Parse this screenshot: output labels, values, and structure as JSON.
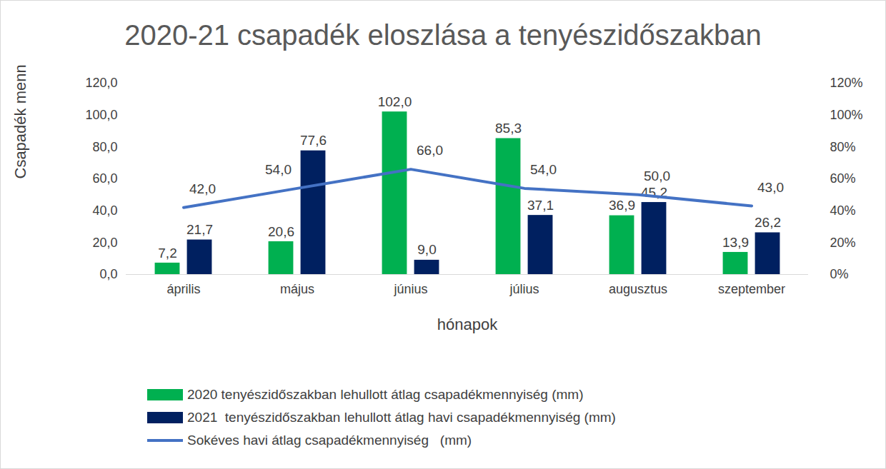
{
  "chart_data": {
    "type": "bar",
    "title": "2020-21 csapadék eloszlása a tenyészidőszakban",
    "x_label": "hónapok",
    "y_label": "Csapadék mennyiség mm",
    "categories": [
      "április",
      "május",
      "június",
      "július",
      "augusztus",
      "szeptember"
    ],
    "series": [
      {
        "name": "2020 tenyészidőszakban lehullott átlag csapadékmennyiség (mm)",
        "type": "bar",
        "color": "#00b050",
        "values": [
          7.2,
          20.6,
          102,
          85.3,
          36.9,
          13.9
        ],
        "value_labels": [
          "7,2",
          "20,6",
          "102,0",
          "85,3",
          "36,9",
          "13,9"
        ]
      },
      {
        "name": "2021  tenyészidőszakban lehullott átlag havi csapadékmennyiség (mm)",
        "type": "bar",
        "color": "#002060",
        "values": [
          21.7,
          77.6,
          9,
          37.1,
          45.2,
          26.2
        ],
        "value_labels": [
          "21,7",
          "77,6",
          "9,0",
          "37,1",
          "45,2",
          "26,2"
        ]
      },
      {
        "name": "Sokéves havi átlag csapadékmennyiség   (mm)",
        "type": "line",
        "color": "#4472c4",
        "values": [
          42,
          54,
          66,
          54,
          50,
          43
        ],
        "value_labels": [
          "42,0",
          "54,0",
          "66,0",
          "54,0",
          "50,0",
          "43,0"
        ]
      }
    ],
    "ylim": [
      0,
      120
    ],
    "yticks": [
      {
        "value": 0,
        "label": "0,0"
      },
      {
        "value": 20,
        "label": "20,0"
      },
      {
        "value": 40,
        "label": "40,0"
      },
      {
        "value": 60,
        "label": "60,0"
      },
      {
        "value": 80,
        "label": "80,0"
      },
      {
        "value": 100,
        "label": "100,0"
      },
      {
        "value": 120,
        "label": "120,0"
      }
    ],
    "y2lim": [
      0,
      120
    ],
    "y2ticks": [
      {
        "value": 0,
        "label": "0%"
      },
      {
        "value": 20,
        "label": "20%"
      },
      {
        "value": 40,
        "label": "40%"
      },
      {
        "value": 60,
        "label": "60%"
      },
      {
        "value": 80,
        "label": "80%"
      },
      {
        "value": 100,
        "label": "100%"
      },
      {
        "value": 120,
        "label": "120%"
      }
    ],
    "grid": false,
    "data_labels": true,
    "legend": "bottom"
  }
}
